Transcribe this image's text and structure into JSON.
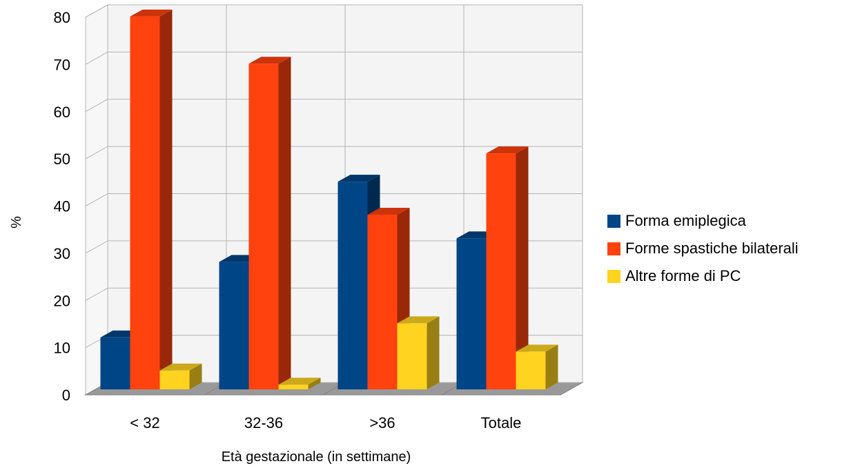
{
  "chart_data": {
    "type": "bar",
    "title": "",
    "xlabel": "Età gestazionale (in settimane)",
    "ylabel": "%",
    "ylim": [
      0,
      80
    ],
    "yticks": [
      0,
      10,
      20,
      30,
      40,
      50,
      60,
      70,
      80
    ],
    "categories": [
      "< 32",
      "32-36",
      ">36",
      "Totale"
    ],
    "grid": true,
    "legend_position": "right",
    "series": [
      {
        "name": "Forma emiplegica",
        "color": "#004586",
        "values": [
          11,
          27,
          44,
          32
        ]
      },
      {
        "name": "Forme spastiche bilaterali",
        "color": "#ff420e",
        "values": [
          79,
          69,
          37,
          50
        ]
      },
      {
        "name": "Altre forme di PC",
        "color": "#ffd320",
        "values": [
          4,
          1,
          14,
          8
        ]
      }
    ]
  }
}
